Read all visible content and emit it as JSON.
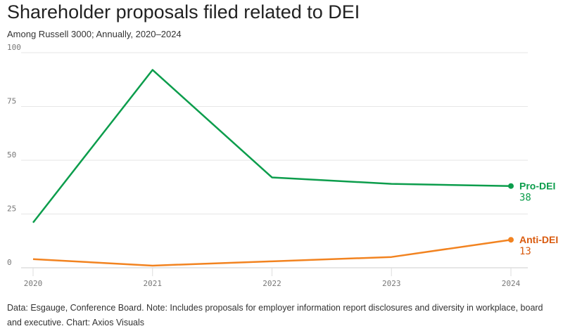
{
  "title": "Shareholder proposals filed related to DEI",
  "subtitle": "Among Russell 3000; Annually, 2020–2024",
  "footer": "Data: Esgauge, Conference Board. Note: Includes proposals for employer information report disclosures and diversity in workplace, board and executive. Chart: Axios Visuals",
  "chart_data": {
    "type": "line",
    "x": [
      "2020",
      "2021",
      "2022",
      "2023",
      "2024"
    ],
    "ylim": [
      0,
      100
    ],
    "yticks": [
      0,
      25,
      50,
      75,
      100
    ],
    "grid": true,
    "series": [
      {
        "name": "Pro-DEI",
        "values": [
          21,
          92,
          42,
          39,
          38
        ],
        "color": "#0c9d4c",
        "label_color": "#0c9d4c",
        "end_label": "38"
      },
      {
        "name": "Anti-DEI",
        "values": [
          4,
          1,
          3,
          5,
          13
        ],
        "color": "#f28320",
        "label_color": "#d95a0e",
        "end_label": "13"
      }
    ]
  }
}
